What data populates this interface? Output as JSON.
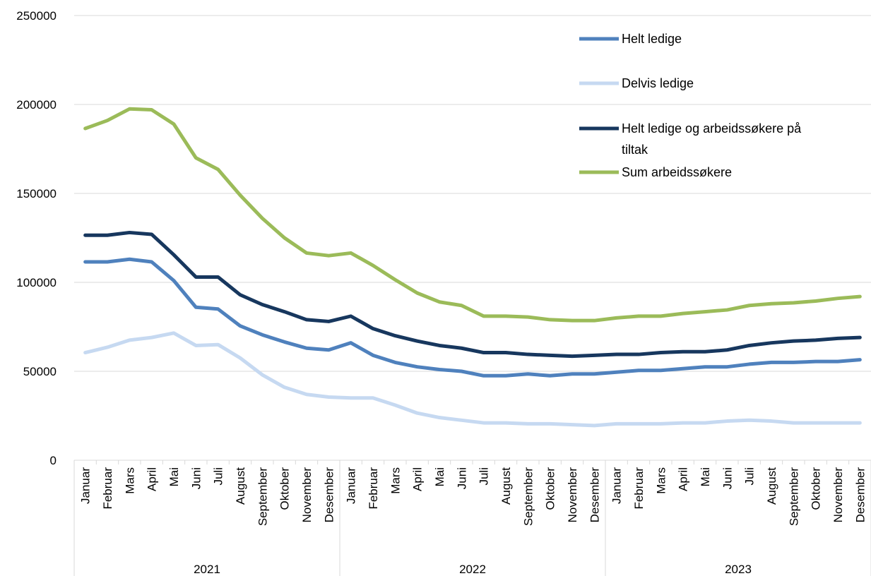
{
  "chart_data": {
    "type": "line",
    "title": "",
    "xlabel": "",
    "ylabel": "",
    "ylim": [
      0,
      250000
    ],
    "y_ticks": [
      "0",
      "50000",
      "100000",
      "150000",
      "200000",
      "250000"
    ],
    "grid": "horizontal",
    "legend_position": "top-right",
    "months": [
      "Januar",
      "Februar",
      "Mars",
      "April",
      "Mai",
      "Juni",
      "Juli",
      "August",
      "September",
      "Oktober",
      "November",
      "Desember"
    ],
    "years": [
      "2021",
      "2022",
      "2023"
    ],
    "series": [
      {
        "name": "Helt ledige",
        "color": "#4f81bd",
        "values": [
          111500,
          111500,
          113000,
          111500,
          101000,
          86000,
          85000,
          75500,
          70500,
          66500,
          63000,
          62000,
          66000,
          59000,
          55000,
          52500,
          51000,
          50000,
          47500,
          47500,
          48500,
          47500,
          48500,
          48500,
          49500,
          50500,
          50500,
          51500,
          52500,
          52500,
          54000,
          55000,
          55000,
          55500,
          55500,
          56500
        ]
      },
      {
        "name": "Delvis ledige",
        "color": "#c6d9f1",
        "values": [
          60500,
          63500,
          67500,
          69000,
          71500,
          64500,
          65000,
          57500,
          48000,
          41000,
          37000,
          35500,
          35000,
          35000,
          31000,
          26500,
          24000,
          22500,
          21000,
          21000,
          20500,
          20500,
          20000,
          19500,
          20500,
          20500,
          20500,
          21000,
          21000,
          22000,
          22500,
          22000,
          21000,
          21000,
          21000,
          21000
        ]
      },
      {
        "name": "Helt ledige og arbeidssøkere på tiltak",
        "label_lines": [
          "Helt ledige og arbeidssøkere på",
          "tiltak"
        ],
        "color": "#17375e",
        "values": [
          126500,
          126500,
          128000,
          127000,
          115500,
          103000,
          103000,
          93000,
          87500,
          83500,
          79000,
          78000,
          81000,
          74000,
          70000,
          67000,
          64500,
          63000,
          60500,
          60500,
          59500,
          59000,
          58500,
          59000,
          59500,
          59500,
          60500,
          61000,
          61000,
          62000,
          64500,
          66000,
          67000,
          67500,
          68500,
          69000
        ]
      },
      {
        "name": "Sum arbeidssøkere",
        "color": "#9bbb59",
        "values": [
          186500,
          191000,
          197500,
          197000,
          189000,
          170000,
          163500,
          149000,
          136000,
          125000,
          116500,
          115000,
          116500,
          109500,
          101500,
          94000,
          89000,
          87000,
          81000,
          81000,
          80500,
          79000,
          78500,
          78500,
          80000,
          81000,
          81000,
          82500,
          83500,
          84500,
          87000,
          88000,
          88500,
          89500,
          91000,
          92000
        ]
      }
    ]
  }
}
